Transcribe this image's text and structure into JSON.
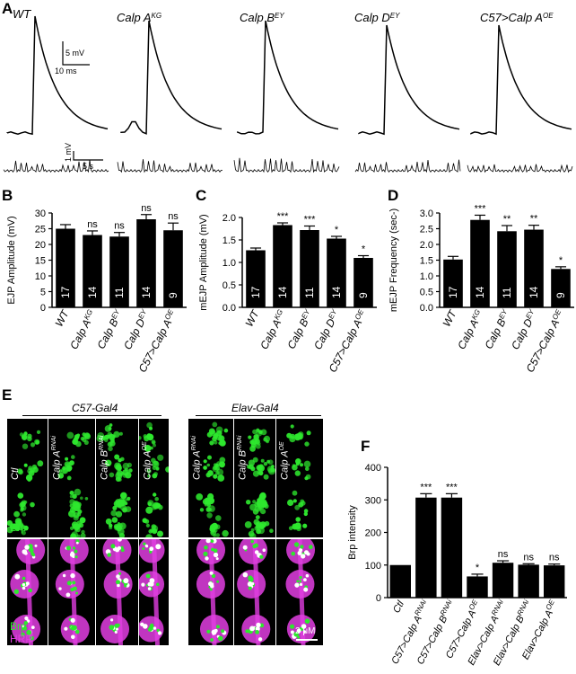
{
  "panel_labels": {
    "a": "A",
    "b": "B",
    "c": "C",
    "d": "D",
    "e": "E",
    "f": "F"
  },
  "traces": {
    "genotypes": [
      {
        "base": "WT",
        "sup": ""
      },
      {
        "base": "Calp A",
        "sup": "KG"
      },
      {
        "base": "Calp B",
        "sup": "EY"
      },
      {
        "base": "Calp D",
        "sup": "EY"
      },
      {
        "base": "C57>Calp A",
        "sup": "OE"
      }
    ],
    "scalebar_ejp": {
      "v": "5 mV",
      "t": "10 ms"
    },
    "scalebar_mejp": {
      "v": "1 mV",
      "t": "5 s"
    }
  },
  "chart_data": [
    {
      "type": "bar",
      "panel": "B",
      "ylabel": "EJP Amplitude (mV)",
      "ylim": [
        0,
        30
      ],
      "yticks": [
        0,
        5,
        10,
        15,
        20,
        25,
        30
      ],
      "categories": [
        {
          "base": "WT",
          "sup": ""
        },
        {
          "base": "Calp A",
          "sup": "KG"
        },
        {
          "base": "Calp B",
          "sup": "EY"
        },
        {
          "base": "Calp D",
          "sup": "EY"
        },
        {
          "base": "C57>Calp A",
          "sup": "OE"
        }
      ],
      "values": [
        25,
        23,
        22.5,
        28,
        24.5
      ],
      "errors": [
        1.3,
        1.3,
        1.3,
        1.5,
        2.3
      ],
      "n": [
        "17",
        "14",
        "11",
        "14",
        "9"
      ],
      "significance": [
        "",
        "ns",
        "ns",
        "ns",
        "ns"
      ]
    },
    {
      "type": "bar",
      "panel": "C",
      "ylabel": "mEJP Amplitude (mV)",
      "ylim": [
        0,
        2
      ],
      "yticks": [
        0.0,
        0.5,
        1.0,
        1.5,
        2.0
      ],
      "categories": [
        {
          "base": "WT",
          "sup": ""
        },
        {
          "base": "Calp A",
          "sup": "KG"
        },
        {
          "base": "Calp B",
          "sup": "EY"
        },
        {
          "base": "Calp D",
          "sup": "EY"
        },
        {
          "base": "C57>Calp A",
          "sup": "OE"
        }
      ],
      "values": [
        1.27,
        1.83,
        1.72,
        1.53,
        1.1
      ],
      "errors": [
        0.05,
        0.05,
        0.09,
        0.05,
        0.05
      ],
      "n": [
        "17",
        "14",
        "11",
        "14",
        "9"
      ],
      "significance": [
        "",
        "***",
        "***",
        "*",
        "*"
      ]
    },
    {
      "type": "bar",
      "panel": "D",
      "ylabel": "mEJP Frequency (sec-)",
      "ylim": [
        0,
        3
      ],
      "yticks": [
        0.0,
        0.5,
        1.0,
        1.5,
        2.0,
        2.5,
        3.0
      ],
      "categories": [
        {
          "base": "WT",
          "sup": ""
        },
        {
          "base": "Calp A",
          "sup": "KG"
        },
        {
          "base": "Calp B",
          "sup": "EY"
        },
        {
          "base": "Calp D",
          "sup": "EY"
        },
        {
          "base": "C57>Calp A",
          "sup": "OE"
        }
      ],
      "values": [
        1.52,
        2.78,
        2.42,
        2.47,
        1.22
      ],
      "errors": [
        0.1,
        0.15,
        0.18,
        0.14,
        0.07
      ],
      "n": [
        "17",
        "14",
        "11",
        "14",
        "9"
      ],
      "significance": [
        "",
        "***",
        "**",
        "**",
        "*"
      ]
    },
    {
      "type": "bar",
      "panel": "F",
      "ylabel": "Brp intensity",
      "ylim": [
        0,
        400
      ],
      "yticks": [
        0,
        100,
        200,
        300,
        400
      ],
      "categories": [
        {
          "base": "Ctl",
          "sup": ""
        },
        {
          "base": "C57>Calp A",
          "sup": "RNAi"
        },
        {
          "base": "C57>Calp B",
          "sup": "RNAi"
        },
        {
          "base": "C57>Calp A",
          "sup": "OE"
        },
        {
          "base": "Elav>Calp A",
          "sup": "RNAi"
        },
        {
          "base": "Elav>Calp B",
          "sup": "RNAi"
        },
        {
          "base": "Elav>Calp A",
          "sup": "OE"
        }
      ],
      "values": [
        100,
        307,
        307,
        65,
        107,
        101,
        99
      ],
      "errors": [
        0,
        12,
        12,
        7,
        6,
        3,
        4
      ],
      "n": [],
      "significance": [
        "",
        "***",
        "***",
        "*",
        "ns",
        "ns",
        "ns"
      ]
    }
  ],
  "panel_e": {
    "driver_left": "C57-Gal4",
    "driver_right": "Elav-Gal4",
    "column_labels": [
      {
        "base": "Ctl",
        "sup": ""
      },
      {
        "base": "Calp A",
        "sup": "RNAi"
      },
      {
        "base": "Calp B",
        "sup": "RNAi"
      },
      {
        "base": "Calp A",
        "sup": "OE"
      },
      {
        "base": "Calp A",
        "sup": "RNAi"
      },
      {
        "base": "Calp B",
        "sup": "RNAi"
      },
      {
        "base": "Calp A",
        "sup": "OE"
      }
    ],
    "stain_top": "Brp",
    "stain_bottom_1": "Brp",
    "stain_bottom_2": "HRP",
    "scalebar": "2 μM",
    "colors": {
      "brp": "#2ee82e",
      "hrp": "#e23ee2",
      "background": "#000000"
    }
  }
}
